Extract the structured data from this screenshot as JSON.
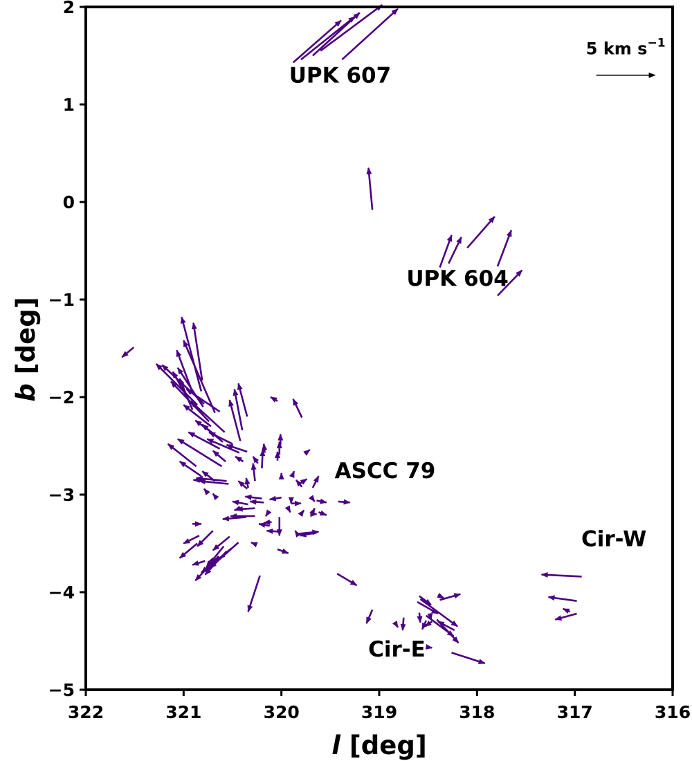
{
  "chart_data": {
    "type": "quiver",
    "xlabel_var": "l",
    "xlabel_unit": "[deg]",
    "ylabel_var": "b",
    "ylabel_unit": "[deg]",
    "xlim": [
      322,
      316
    ],
    "ylim": [
      -5,
      2
    ],
    "x_ticks": [
      322,
      321,
      320,
      319,
      318,
      317,
      316
    ],
    "y_ticks": [
      2,
      1,
      0,
      -1,
      -2,
      -3,
      -4,
      -5
    ],
    "x_tick_labels": [
      "322",
      "321",
      "320",
      "319",
      "318",
      "317",
      "316"
    ],
    "y_tick_labels": [
      "2",
      "1",
      "0",
      "−1",
      "−2",
      "−3",
      "−4",
      "−5"
    ],
    "arrow_color": "#4b0082",
    "scale_arrow": {
      "label_base": "5 km s",
      "label_exp": "−1",
      "l0": 316.78,
      "l1": 316.18,
      "b": 1.3
    },
    "annotations": [
      {
        "text": "UPK 607",
        "l": 319.4,
        "b": 1.3
      },
      {
        "text": "UPK 604",
        "l": 318.2,
        "b": -0.78
      },
      {
        "text": "ASCC 79",
        "l": 318.94,
        "b": -2.75
      },
      {
        "text": "Cir-W",
        "l": 316.6,
        "b": -3.45
      },
      {
        "text": "Cir-E",
        "l": 318.82,
        "b": -4.58
      }
    ],
    "arrows": [
      [
        319.88,
        1.43,
        319.39,
        1.86
      ],
      [
        319.8,
        1.46,
        319.25,
        1.9
      ],
      [
        319.68,
        1.5,
        319.2,
        1.94
      ],
      [
        319.6,
        1.55,
        318.97,
        2.02
      ],
      [
        319.38,
        1.46,
        318.81,
        1.98
      ],
      [
        319.07,
        -0.08,
        319.11,
        0.35
      ],
      [
        318.38,
        -0.67,
        318.26,
        -0.34
      ],
      [
        318.29,
        -0.63,
        318.16,
        -0.36
      ],
      [
        318.1,
        -0.47,
        317.82,
        -0.15
      ],
      [
        317.79,
        -0.66,
        317.65,
        -0.29
      ],
      [
        317.79,
        -0.96,
        317.54,
        -0.7
      ],
      [
        321.51,
        -1.49,
        321.63,
        -1.59
      ],
      [
        320.81,
        -1.83,
        320.9,
        -1.24
      ],
      [
        320.82,
        -1.94,
        321.02,
        -1.18
      ],
      [
        320.91,
        -1.95,
        321.07,
        -1.52
      ],
      [
        320.94,
        -2.05,
        321.11,
        -1.74
      ],
      [
        320.91,
        -2.13,
        321.04,
        -1.81
      ],
      [
        320.68,
        -2.16,
        321.0,
        -1.42
      ],
      [
        320.8,
        -2.1,
        321.06,
        -1.7
      ],
      [
        320.86,
        -2.08,
        321.28,
        -1.66
      ],
      [
        320.74,
        -2.25,
        321.13,
        -1.84
      ],
      [
        320.58,
        -2.36,
        320.93,
        -2.04
      ],
      [
        320.79,
        -2.07,
        321.22,
        -1.67
      ],
      [
        320.63,
        -2.15,
        320.97,
        -1.92
      ],
      [
        320.72,
        -2.3,
        321.0,
        -2.08
      ],
      [
        320.66,
        -2.4,
        320.88,
        -2.24
      ],
      [
        320.6,
        -2.46,
        320.81,
        -2.28
      ],
      [
        320.5,
        -2.48,
        320.74,
        -2.36
      ],
      [
        320.4,
        -2.34,
        320.48,
        -1.92
      ],
      [
        320.35,
        -2.2,
        320.44,
        -1.86
      ],
      [
        320.42,
        -2.45,
        320.53,
        -2.03
      ],
      [
        320.63,
        -2.53,
        320.95,
        -2.36
      ],
      [
        320.43,
        -2.57,
        320.76,
        -2.43
      ],
      [
        320.61,
        -2.71,
        321.06,
        -2.43
      ],
      [
        320.87,
        -2.71,
        321.16,
        -2.48
      ],
      [
        320.82,
        -2.81,
        321.04,
        -2.66
      ],
      [
        320.35,
        -2.56,
        320.56,
        -2.49
      ],
      [
        320.57,
        -2.66,
        320.7,
        -2.55
      ],
      [
        320.39,
        -2.66,
        320.47,
        -2.61
      ],
      [
        320.56,
        -2.86,
        320.87,
        -2.83
      ],
      [
        320.54,
        -2.89,
        320.84,
        -2.86
      ],
      [
        320.79,
        -2.85,
        320.9,
        -2.85
      ],
      [
        320.68,
        -2.86,
        320.81,
        -2.76
      ],
      [
        320.35,
        -2.94,
        320.44,
        -2.86
      ],
      [
        320.24,
        -2.68,
        320.29,
        -2.61
      ],
      [
        320.27,
        -2.86,
        320.29,
        -2.68
      ],
      [
        320.34,
        -2.93,
        320.36,
        -2.83
      ],
      [
        320.2,
        -2.73,
        320.19,
        -2.54
      ],
      [
        320.17,
        -2.57,
        320.18,
        -2.48
      ],
      [
        320.01,
        -2.49,
        320.01,
        -2.38
      ],
      [
        320.02,
        -2.59,
        320.02,
        -2.46
      ],
      [
        320.04,
        -2.65,
        320.04,
        -2.56
      ],
      [
        320.04,
        -2.04,
        320.11,
        -2.0
      ],
      [
        319.79,
        -2.21,
        319.88,
        -2.02
      ],
      [
        319.76,
        -2.58,
        319.71,
        -2.54
      ],
      [
        320.0,
        -2.83,
        320.0,
        -2.78
      ],
      [
        319.89,
        -2.81,
        319.87,
        -2.76
      ],
      [
        319.83,
        -2.9,
        319.74,
        -2.84
      ],
      [
        319.68,
        -2.93,
        319.62,
        -2.81
      ],
      [
        319.79,
        -2.92,
        319.85,
        -2.85
      ],
      [
        320.75,
        -2.99,
        320.79,
        -2.94
      ],
      [
        320.66,
        -3.04,
        320.7,
        -2.99
      ],
      [
        320.34,
        -3.1,
        320.5,
        -3.07
      ],
      [
        320.2,
        -3.04,
        320.37,
        -3.02
      ],
      [
        320.18,
        -3.08,
        320.32,
        -3.07
      ],
      [
        320.0,
        -3.03,
        320.12,
        -3.05
      ],
      [
        319.9,
        -3.09,
        319.8,
        -3.09
      ],
      [
        319.64,
        -3.06,
        319.54,
        -3.08
      ],
      [
        319.7,
        -3.02,
        319.66,
        -3.07
      ],
      [
        319.42,
        -3.07,
        319.3,
        -3.08
      ],
      [
        319.9,
        -3.04,
        319.9,
        -3.09
      ],
      [
        320.27,
        -3.14,
        320.46,
        -3.15
      ],
      [
        320.27,
        -3.22,
        320.52,
        -3.22
      ],
      [
        320.36,
        -3.23,
        320.6,
        -3.25
      ],
      [
        320.42,
        -3.14,
        320.48,
        -3.16
      ],
      [
        320.14,
        -3.19,
        320.16,
        -3.22
      ],
      [
        319.92,
        -3.16,
        319.91,
        -3.18
      ],
      [
        319.8,
        -3.2,
        319.77,
        -3.16
      ],
      [
        319.68,
        -3.2,
        319.64,
        -3.2
      ],
      [
        319.62,
        -3.18,
        319.54,
        -3.21
      ],
      [
        319.68,
        -3.18,
        319.66,
        -3.14
      ],
      [
        320.1,
        -3.28,
        320.18,
        -3.29
      ],
      [
        320.12,
        -3.32,
        320.23,
        -3.3
      ],
      [
        320.02,
        -3.38,
        320.15,
        -3.37
      ],
      [
        320.02,
        -3.23,
        320.02,
        -3.42
      ],
      [
        319.84,
        -3.4,
        319.86,
        -3.37
      ],
      [
        319.82,
        -3.4,
        319.62,
        -3.38
      ],
      [
        319.64,
        -3.39,
        319.81,
        -3.42
      ],
      [
        320.91,
        -3.3,
        320.82,
        -3.3
      ],
      [
        320.84,
        -3.42,
        321.0,
        -3.5
      ],
      [
        320.7,
        -3.37,
        320.86,
        -3.53
      ],
      [
        320.53,
        -3.43,
        320.7,
        -3.57
      ],
      [
        320.86,
        -3.5,
        321.04,
        -3.65
      ],
      [
        320.78,
        -3.68,
        320.91,
        -3.72
      ],
      [
        320.58,
        -3.63,
        320.75,
        -3.69
      ],
      [
        320.44,
        -3.49,
        320.73,
        -3.75
      ],
      [
        320.59,
        -3.53,
        320.77,
        -3.75
      ],
      [
        320.51,
        -3.55,
        320.79,
        -3.78
      ],
      [
        320.65,
        -3.67,
        320.82,
        -3.8
      ],
      [
        320.56,
        -3.58,
        320.78,
        -3.82
      ],
      [
        320.64,
        -3.63,
        320.88,
        -3.88
      ],
      [
        320.26,
        -3.51,
        320.31,
        -3.49
      ],
      [
        320.04,
        -3.56,
        319.93,
        -3.6
      ],
      [
        320.22,
        -3.83,
        320.34,
        -4.2
      ],
      [
        319.43,
        -3.81,
        319.23,
        -3.93
      ],
      [
        319.07,
        -4.18,
        319.13,
        -4.32
      ],
      [
        318.84,
        -4.31,
        318.81,
        -4.36
      ],
      [
        318.75,
        -4.26,
        318.76,
        -4.39
      ],
      [
        318.59,
        -4.21,
        318.58,
        -4.31
      ],
      [
        318.52,
        -4.29,
        318.56,
        -4.38
      ],
      [
        318.48,
        -4.22,
        318.47,
        -4.28
      ],
      [
        318.46,
        -4.3,
        318.53,
        -4.35
      ],
      [
        318.59,
        -4.04,
        318.47,
        -4.13
      ],
      [
        318.61,
        -4.1,
        318.4,
        -4.22
      ],
      [
        318.4,
        -4.03,
        318.34,
        -4.06
      ],
      [
        318.38,
        -4.08,
        318.17,
        -4.02
      ],
      [
        318.58,
        -4.07,
        318.2,
        -4.35
      ],
      [
        318.52,
        -4.24,
        318.24,
        -4.45
      ],
      [
        318.41,
        -4.28,
        318.19,
        -4.52
      ],
      [
        318.52,
        -4.56,
        318.46,
        -4.57
      ],
      [
        318.23,
        -4.39,
        318.4,
        -4.3
      ],
      [
        318.26,
        -4.62,
        317.92,
        -4.73
      ],
      [
        316.93,
        -3.84,
        317.34,
        -3.82
      ],
      [
        316.98,
        -4.09,
        317.27,
        -4.05
      ],
      [
        316.98,
        -4.22,
        317.2,
        -4.28
      ],
      [
        317.05,
        -4.2,
        317.12,
        -4.17
      ]
    ]
  }
}
